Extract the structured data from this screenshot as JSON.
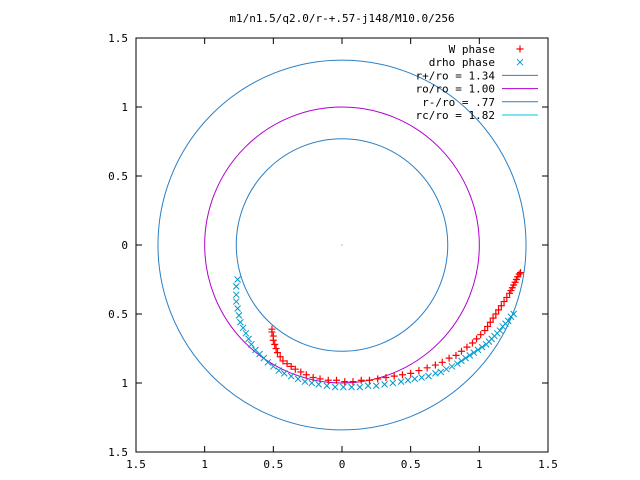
{
  "chart_data": {
    "type": "scatter",
    "title": "m1/n1.5/q2.0/r-+.57-j148/M10.0/256",
    "xlabel": "",
    "ylabel": "",
    "xlim": [
      -1.5,
      1.5
    ],
    "ylim": [
      -1.5,
      1.5
    ],
    "x_ticks": [
      -1.5,
      -1,
      -0.5,
      0,
      0.5,
      1,
      1.5
    ],
    "y_ticks": [
      -1.5,
      -1,
      -0.5,
      0,
      0.5,
      1,
      1.5
    ],
    "x_tick_labels": [
      "1.5",
      "1",
      "0.5",
      "0",
      "0.5",
      "1",
      "1.5"
    ],
    "y_tick_labels": [
      "1.5",
      "1",
      "0.5",
      "0",
      "0.5",
      "1",
      "1.5"
    ],
    "grid": false,
    "legend_position": "top-right",
    "legend": [
      {
        "label": "W phase",
        "kind": "marker-plus",
        "color": "#ff0000"
      },
      {
        "label": "drho phase",
        "kind": "marker-x",
        "color": "#0099cc"
      },
      {
        "label": "r+/ro = 1.34",
        "kind": "line",
        "color": "#2a7fc4"
      },
      {
        "label": "ro/ro = 1.00",
        "kind": "line",
        "color": "#b000d0"
      },
      {
        "label": "r-/ro = .77",
        "kind": "line",
        "color": "#2a7fc4"
      },
      {
        "label": "rc/ro = 1.82",
        "kind": "line",
        "color": "#00c8e0"
      }
    ],
    "circles": [
      {
        "name": "r+/ro = 1.34",
        "r": 1.34,
        "color": "#2a7fc4"
      },
      {
        "name": "ro/ro = 1.00",
        "r": 1.0,
        "color": "#b000d0"
      },
      {
        "name": "r-/ro = .77",
        "r": 0.77,
        "color": "#2a7fc4"
      }
    ],
    "series": [
      {
        "name": "W phase",
        "marker": "plus",
        "color": "#ff0000",
        "x": [
          1.3,
          1.29,
          1.28,
          1.27,
          1.26,
          1.25,
          1.24,
          1.23,
          1.22,
          1.2,
          1.18,
          1.16,
          1.14,
          1.12,
          1.1,
          1.08,
          1.06,
          1.04,
          1.01,
          0.98,
          0.95,
          0.91,
          0.87,
          0.83,
          0.78,
          0.73,
          0.68,
          0.62,
          0.56,
          0.5,
          0.44,
          0.38,
          0.32,
          0.26,
          0.2,
          0.14,
          0.08,
          0.02,
          -0.04,
          -0.1,
          -0.16,
          -0.21,
          -0.26,
          -0.3,
          -0.34,
          -0.37,
          -0.4,
          -0.43,
          -0.45,
          -0.47,
          -0.48,
          -0.49,
          -0.5,
          -0.5,
          -0.51,
          -0.51
        ],
        "y": [
          -0.2,
          -0.21,
          -0.23,
          -0.25,
          -0.27,
          -0.29,
          -0.31,
          -0.33,
          -0.35,
          -0.38,
          -0.41,
          -0.44,
          -0.47,
          -0.5,
          -0.53,
          -0.56,
          -0.59,
          -0.62,
          -0.65,
          -0.68,
          -0.71,
          -0.74,
          -0.77,
          -0.8,
          -0.82,
          -0.85,
          -0.87,
          -0.89,
          -0.91,
          -0.93,
          -0.94,
          -0.95,
          -0.96,
          -0.97,
          -0.98,
          -0.98,
          -0.99,
          -0.99,
          -0.98,
          -0.98,
          -0.97,
          -0.96,
          -0.94,
          -0.92,
          -0.9,
          -0.88,
          -0.86,
          -0.84,
          -0.81,
          -0.78,
          -0.75,
          -0.72,
          -0.69,
          -0.66,
          -0.63,
          -0.61
        ]
      },
      {
        "name": "drho phase",
        "marker": "cross",
        "color": "#0099cc",
        "x": [
          1.25,
          1.23,
          1.21,
          1.19,
          1.17,
          1.15,
          1.13,
          1.11,
          1.09,
          1.07,
          1.05,
          1.02,
          0.99,
          0.96,
          0.93,
          0.9,
          0.87,
          0.84,
          0.8,
          0.76,
          0.72,
          0.68,
          0.63,
          0.58,
          0.53,
          0.48,
          0.43,
          0.37,
          0.31,
          0.25,
          0.19,
          0.13,
          0.07,
          0.01,
          -0.05,
          -0.11,
          -0.17,
          -0.22,
          -0.27,
          -0.32,
          -0.37,
          -0.42,
          -0.46,
          -0.5,
          -0.54,
          -0.57,
          -0.6,
          -0.63,
          -0.66,
          -0.68,
          -0.7,
          -0.72,
          -0.74,
          -0.75,
          -0.76,
          -0.77,
          -0.77,
          -0.77,
          -0.76
        ],
        "y": [
          -0.5,
          -0.52,
          -0.55,
          -0.57,
          -0.59,
          -0.62,
          -0.64,
          -0.66,
          -0.68,
          -0.7,
          -0.72,
          -0.74,
          -0.76,
          -0.78,
          -0.8,
          -0.82,
          -0.84,
          -0.86,
          -0.88,
          -0.9,
          -0.92,
          -0.93,
          -0.95,
          -0.96,
          -0.97,
          -0.98,
          -0.99,
          -1.0,
          -1.01,
          -1.02,
          -1.02,
          -1.03,
          -1.03,
          -1.03,
          -1.03,
          -1.02,
          -1.01,
          -1.0,
          -0.99,
          -0.97,
          -0.95,
          -0.93,
          -0.91,
          -0.88,
          -0.85,
          -0.82,
          -0.79,
          -0.76,
          -0.72,
          -0.68,
          -0.64,
          -0.6,
          -0.56,
          -0.51,
          -0.46,
          -0.41,
          -0.36,
          -0.3,
          -0.25
        ]
      }
    ]
  }
}
